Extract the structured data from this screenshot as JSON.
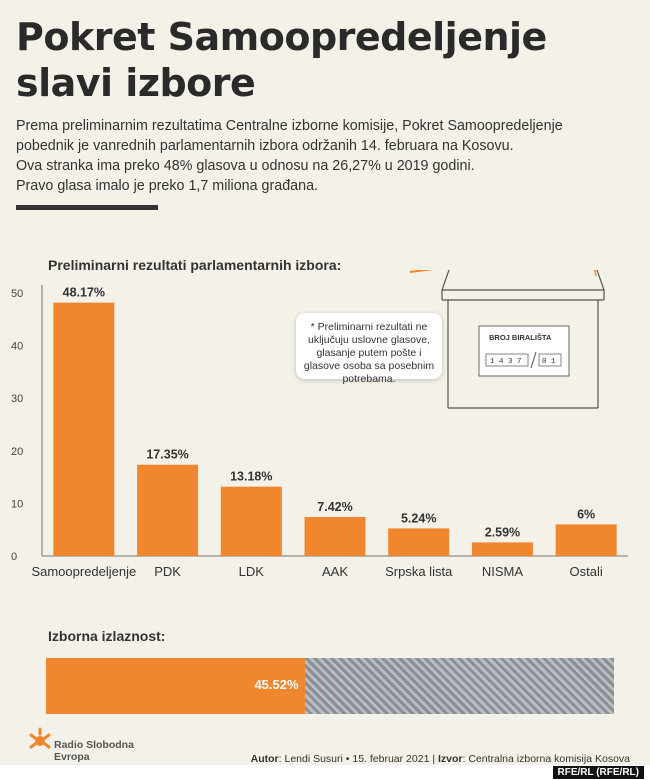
{
  "title_line1": "Pokret Samoopredeljenje",
  "title_line2": "slavi izbore",
  "intro": [
    "Prema preliminarnim rezultatima Centralne izborne komisije, Pokret Samoopredeljenje",
    "pobednik je vanrednih parlamentarnih izbora održanih 14. februara na Kosovu.",
    "Ova stranka ima preko 48% glasova u odnosu na 26,27% u 2019 godini.",
    "Pravo glasa imalo je preko 1,7 miliona građana."
  ],
  "colors": {
    "accent": "#f0862e",
    "text": "#2a2a2a",
    "background": "#f4f1e8",
    "hatch": "#8a8e95"
  },
  "chart_data": {
    "type": "bar",
    "title": "Preliminarni rezultati parlamentarnih izbora:",
    "categories": [
      "Samoopredeljenje",
      "PDK",
      "LDK",
      "AAK",
      "Srpska lista",
      "NISMA",
      "Ostali"
    ],
    "values": [
      48.17,
      17.35,
      13.18,
      7.42,
      5.24,
      2.59,
      6
    ],
    "data_labels": [
      "48.17%",
      "17.35%",
      "13.18%",
      "7.42%",
      "5.24%",
      "2.59%",
      "6%"
    ],
    "yticks": [
      0,
      10,
      20,
      30,
      40,
      50
    ],
    "ylim": [
      0,
      50
    ],
    "grid": false,
    "xlabel": "",
    "ylabel": ""
  },
  "note": "* Preliminarni rezultati ne uključuju uslovne glasove, glasanje putem pošte i glasove osoba sa posebnim potrebama.",
  "ballot_box": {
    "label": "BROJ BIRALIŠTA",
    "number": "1 4 3 7",
    "suffix": "0 1"
  },
  "turnout": {
    "label": "Izborna izlaznost:",
    "value": 45.52,
    "value_label": "45.52%"
  },
  "logo": {
    "name_line1": "Radio Slobodna",
    "name_line2": "Evropa"
  },
  "footer": {
    "author_label": "Autor",
    "author": ": Lendi Susuri • 15. februar 2021 |",
    "source_label": "Izvor",
    "source": ": Centralna izborna komisija Kosova"
  },
  "credit": "RFE/RL (RFE/RL)"
}
